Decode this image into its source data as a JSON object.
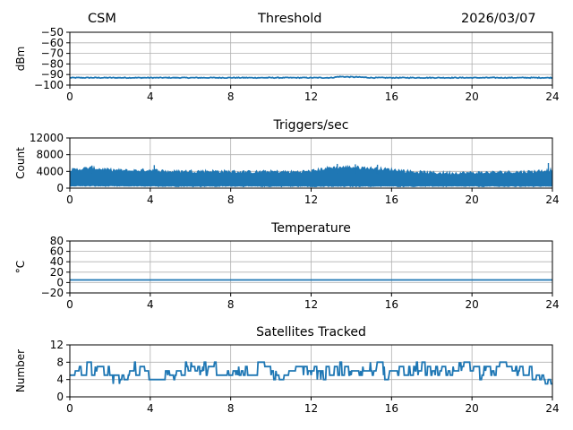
{
  "header": {
    "left": "CSM",
    "center": "Threshold",
    "right": "2026/03/07"
  },
  "colors": {
    "series": "#1f77b4",
    "grid": "#b0b0b0",
    "axis": "#000000"
  },
  "chart_data": [
    {
      "type": "line",
      "title": "",
      "ylabel": "dBm",
      "xlim": [
        0,
        24
      ],
      "ylim": [
        -100,
        -50
      ],
      "xticks": [
        0,
        4,
        8,
        12,
        16,
        20,
        24
      ],
      "yticks": [
        -100,
        -90,
        -80,
        -70,
        -60,
        -50
      ],
      "ytick_labels": [
        "−100",
        "−90",
        "−80",
        "−70",
        "−60",
        "−50"
      ],
      "grid": true,
      "series": [
        {
          "kind": "flat",
          "x": [
            0,
            13,
            13.4,
            14.5,
            15,
            24
          ],
          "y": [
            -93,
            -93,
            -92,
            -92.5,
            -93,
            -93
          ],
          "noise": 0.4
        }
      ]
    },
    {
      "type": "area",
      "title": "Triggers/sec",
      "ylabel": "Count",
      "xlim": [
        0,
        24
      ],
      "ylim": [
        0,
        12000
      ],
      "xticks": [
        0,
        4,
        8,
        12,
        16,
        20,
        24
      ],
      "yticks": [
        0,
        4000,
        8000,
        12000
      ],
      "ytick_labels": [
        "0",
        "4000",
        "8000",
        "12000"
      ],
      "grid": true,
      "series": [
        {
          "kind": "band",
          "x": [
            0,
            1,
            2,
            3,
            4,
            5,
            6,
            7,
            8,
            9,
            10,
            11,
            12,
            13,
            14,
            15,
            16,
            17,
            18,
            19,
            20,
            21,
            22,
            23,
            24
          ],
          "upper": [
            4200,
            4800,
            4300,
            4100,
            4300,
            3900,
            4000,
            4000,
            3900,
            3800,
            3900,
            3800,
            4000,
            4900,
            5000,
            4700,
            4400,
            3900,
            3600,
            3600,
            3600,
            3700,
            3800,
            3900,
            4300
          ],
          "lower": [
            400,
            400,
            350,
            350,
            300,
            350,
            300,
            300,
            350,
            300,
            300,
            300,
            300,
            300,
            300,
            300,
            300,
            300,
            300,
            300,
            300,
            300,
            300,
            300,
            300
          ],
          "spikes": [
            [
              1.1,
              5400
            ],
            [
              4.2,
              5500
            ],
            [
              13.3,
              5800
            ],
            [
              14.2,
              5700
            ],
            [
              15.3,
              5600
            ],
            [
              23.8,
              6000
            ]
          ]
        }
      ]
    },
    {
      "type": "line",
      "title": "Temperature",
      "ylabel": "°C",
      "xlim": [
        0,
        24
      ],
      "ylim": [
        -20,
        80
      ],
      "xticks": [
        0,
        4,
        8,
        12,
        16,
        20,
        24
      ],
      "yticks": [
        -20,
        0,
        20,
        40,
        60,
        80
      ],
      "ytick_labels": [
        "−20",
        "0",
        "20",
        "40",
        "60",
        "80"
      ],
      "grid": true,
      "series": [
        {
          "kind": "flat",
          "x": [
            0,
            24
          ],
          "y": [
            5,
            5
          ],
          "noise": 0
        }
      ]
    },
    {
      "type": "line",
      "title": "Satellites Tracked",
      "ylabel": "Number",
      "xlim": [
        0,
        24
      ],
      "ylim": [
        0,
        12
      ],
      "xticks": [
        0,
        4,
        8,
        12,
        16,
        20,
        24
      ],
      "yticks": [
        0,
        4,
        8,
        12
      ],
      "ytick_labels": [
        "0",
        "4",
        "8",
        "12"
      ],
      "grid": true,
      "series": [
        {
          "kind": "step",
          "x": [
            0,
            0.5,
            1,
            1.5,
            2,
            2.5,
            3,
            3.5,
            4,
            4.5,
            5,
            5.5,
            6,
            6.5,
            7,
            7.5,
            8,
            8.5,
            9,
            9.5,
            10,
            10.5,
            11,
            11.5,
            12,
            12.5,
            13,
            13.5,
            14,
            14.5,
            15,
            15.5,
            16,
            16.5,
            17,
            17.5,
            18,
            18.5,
            19,
            19.5,
            20,
            20.5,
            21,
            21.5,
            22,
            22.5,
            23,
            23.5,
            24
          ],
          "y": [
            5,
            6,
            7,
            6,
            5,
            4,
            6,
            7,
            5,
            4,
            5,
            6,
            7,
            6,
            7,
            6,
            5,
            6,
            6,
            7,
            6,
            5,
            6,
            7,
            6,
            5,
            6,
            7,
            5,
            6,
            7,
            6,
            5,
            6,
            6,
            7,
            5,
            6,
            6,
            7,
            6,
            5,
            6,
            7,
            5,
            6,
            5,
            4,
            4
          ]
        }
      ]
    }
  ]
}
